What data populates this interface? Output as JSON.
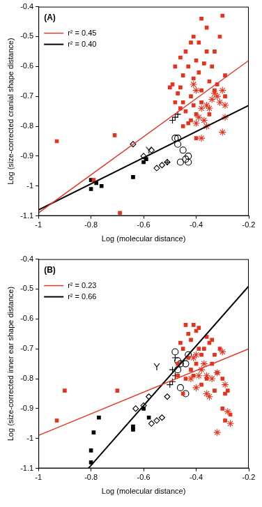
{
  "chart_data": [
    {
      "type": "scatter",
      "title": "(A)",
      "xlabel": "Log (molecular distance)",
      "ylabel": "Log (size-corrected cranial shape distance)",
      "xlim": [
        -1,
        -0.2
      ],
      "xticks": [
        -1,
        -0.8,
        -0.6,
        -0.4,
        -0.2
      ],
      "ylim": [
        -1.1,
        -0.4
      ],
      "yticks": [
        -1.1,
        -1,
        -0.9,
        -0.8,
        -0.7,
        -0.6,
        -0.5,
        -0.4
      ],
      "grid": false,
      "legend": "upper left",
      "series": [
        {
          "color": "#e8311d",
          "marker": "square",
          "x": [
            -0.93,
            -0.79,
            -0.71,
            -0.69,
            -0.49,
            -0.48,
            -0.46,
            -0.45,
            -0.45,
            -0.44,
            -0.43,
            -0.42,
            -0.42,
            -0.41,
            -0.41,
            -0.4,
            -0.39,
            -0.38,
            -0.37,
            -0.36,
            -0.35,
            -0.34,
            -0.33,
            -0.32,
            -0.31,
            -0.3,
            -0.29,
            -0.29,
            -0.47,
            -0.44,
            -0.43,
            -0.41,
            -0.4,
            -0.38,
            -0.46,
            -0.39,
            -0.36,
            -0.42,
            -0.45,
            -0.46,
            -0.33,
            -0.38,
            -0.4,
            -0.35,
            -0.48,
            -0.5
          ],
          "values": [
            -0.85,
            -0.98,
            -0.83,
            -1.09,
            -0.66,
            -0.6,
            -0.67,
            -0.63,
            -0.72,
            -0.55,
            -0.6,
            -0.7,
            -0.78,
            -0.64,
            -0.5,
            -0.58,
            -0.62,
            -0.44,
            -0.59,
            -0.55,
            -0.65,
            -0.6,
            -0.68,
            -0.66,
            -0.5,
            -0.43,
            -0.7,
            -0.63,
            -0.69,
            -0.75,
            -0.79,
            -0.73,
            -0.76,
            -0.72,
            -0.57,
            -0.52,
            -0.47,
            -0.52,
            -0.8,
            -0.74,
            -0.55,
            -0.68,
            -0.84,
            -0.76,
            -0.72,
            -0.67
          ]
        },
        {
          "color": "#e8311d",
          "marker": "asterisk",
          "x": [
            -0.41,
            -0.4,
            -0.38,
            -0.37,
            -0.36,
            -0.36,
            -0.34,
            -0.33,
            -0.32,
            -0.31,
            -0.3,
            -0.29,
            -0.29,
            -0.3,
            -0.38,
            -0.4,
            -0.39,
            -0.35
          ],
          "values": [
            -0.66,
            -0.68,
            -0.74,
            -0.78,
            -0.8,
            -0.73,
            -0.71,
            -0.69,
            -0.7,
            -0.72,
            -0.68,
            -0.73,
            -0.77,
            -0.82,
            -0.84,
            -0.79,
            -0.77,
            -0.74
          ]
        },
        {
          "color": "#000000",
          "marker": "square",
          "x": [
            -0.8,
            -0.8,
            -0.78,
            -0.76,
            -0.64,
            -0.6,
            -0.59
          ],
          "values": [
            -0.98,
            -1.01,
            -0.99,
            -1.0,
            -0.97,
            -0.92,
            -0.91
          ]
        },
        {
          "color": "#000000",
          "marker": "diamond_open",
          "x": [
            -0.64,
            -0.6,
            -0.57,
            -0.55,
            -0.53,
            -0.51
          ],
          "values": [
            -0.86,
            -0.9,
            -0.88,
            -0.94,
            -0.93,
            -0.92
          ]
        },
        {
          "color": "#000000",
          "marker": "Y",
          "x": [
            -0.58
          ],
          "values": [
            -0.88
          ]
        },
        {
          "color": "#000000",
          "marker": "plus",
          "x": [
            -0.49,
            -0.48,
            -0.47,
            -0.51
          ],
          "values": [
            -0.78,
            -0.77,
            -0.76,
            -0.92
          ]
        },
        {
          "color": "#000000",
          "marker": "circle_open",
          "x": [
            -0.48,
            -0.47,
            -0.47,
            -0.45,
            -0.44,
            -0.43,
            -0.46,
            -0.43
          ],
          "values": [
            -0.84,
            -0.84,
            -0.86,
            -0.88,
            -0.91,
            -0.9,
            -0.92,
            -0.92
          ]
        },
        {
          "name": "r² = 0.45",
          "type": "line",
          "line_style": "solid",
          "color": "#e8311d",
          "x": [
            -1,
            -0.2
          ],
          "values": [
            -1.09,
            -0.58
          ]
        },
        {
          "name": "r² = 0.40",
          "type": "line",
          "line_style": "solid",
          "color": "#000000",
          "x": [
            -1,
            -0.2
          ],
          "values": [
            -1.08,
            -0.73
          ]
        }
      ]
    },
    {
      "type": "scatter",
      "title": "(B)",
      "xlabel": "Log (molecular distance)",
      "ylabel": "Log (size-corrected inner ear shape distance)",
      "xlim": [
        -1,
        -0.2
      ],
      "xticks": [
        -1,
        -0.8,
        -0.6,
        -0.4,
        -0.2
      ],
      "ylim": [
        -1.1,
        -0.4
      ],
      "yticks": [
        -1.1,
        -1,
        -0.9,
        -0.8,
        -0.7,
        -0.6,
        -0.5,
        -0.4
      ],
      "grid": false,
      "legend": "upper left",
      "series": [
        {
          "color": "#e8311d",
          "marker": "square",
          "x": [
            -0.93,
            -0.9,
            -0.7,
            -0.47,
            -0.46,
            -0.45,
            -0.44,
            -0.43,
            -0.42,
            -0.41,
            -0.4,
            -0.39,
            -0.38,
            -0.37,
            -0.36,
            -0.35,
            -0.34,
            -0.33,
            -0.31,
            -0.3,
            -0.29,
            -0.28,
            -0.29,
            -0.27,
            -0.3,
            -0.44,
            -0.42,
            -0.4,
            -0.38,
            -0.36,
            -0.47,
            -0.45,
            -0.43,
            -0.41,
            -0.34,
            -0.33,
            -0.39,
            -0.32
          ],
          "values": [
            -0.94,
            -0.84,
            -0.84,
            -0.79,
            -0.68,
            -0.7,
            -0.62,
            -0.65,
            -0.67,
            -0.62,
            -0.64,
            -0.63,
            -0.72,
            -0.7,
            -0.66,
            -0.68,
            -0.67,
            -0.72,
            -0.7,
            -0.8,
            -0.85,
            -0.84,
            -0.94,
            -0.92,
            -0.9,
            -0.8,
            -0.77,
            -0.75,
            -0.82,
            -0.8,
            -0.75,
            -0.85,
            -0.73,
            -0.79,
            -0.75,
            -0.84,
            -0.7,
            -0.78
          ]
        },
        {
          "color": "#e8311d",
          "marker": "asterisk",
          "x": [
            -0.42,
            -0.41,
            -0.4,
            -0.39,
            -0.38,
            -0.37,
            -0.36,
            -0.35,
            -0.34,
            -0.32,
            -0.3,
            -0.29,
            -0.28,
            -0.27,
            -0.32,
            -0.4,
            -0.36
          ],
          "values": [
            -0.8,
            -0.73,
            -0.72,
            -0.79,
            -0.77,
            -0.75,
            -0.85,
            -0.86,
            -0.8,
            -0.78,
            -0.71,
            -0.82,
            -0.91,
            -0.95,
            -0.98,
            -0.83,
            -0.79
          ]
        },
        {
          "color": "#000000",
          "marker": "square",
          "x": [
            -0.8,
            -0.8,
            -0.79,
            -0.77,
            -0.64,
            -0.64,
            -0.6,
            -0.58
          ],
          "values": [
            -1.04,
            -1.08,
            -0.98,
            -0.93,
            -0.97,
            -0.96,
            -0.9,
            -0.93
          ]
        },
        {
          "color": "#000000",
          "marker": "diamond_open",
          "x": [
            -0.63,
            -0.6,
            -0.57,
            -0.55,
            -0.53,
            -0.51,
            -0.58
          ],
          "values": [
            -0.9,
            -0.89,
            -0.95,
            -0.94,
            -0.93,
            -0.86,
            -0.86
          ]
        },
        {
          "color": "#000000",
          "marker": "Y",
          "x": [
            -0.55
          ],
          "values": [
            -0.76
          ]
        },
        {
          "color": "#000000",
          "marker": "plus",
          "x": [
            -0.49,
            -0.48,
            -0.49,
            -0.48,
            -0.5
          ],
          "values": [
            -0.77,
            -0.79,
            -0.81,
            -0.73,
            -0.82
          ]
        },
        {
          "color": "#000000",
          "marker": "circle_open",
          "x": [
            -0.48,
            -0.47,
            -0.46,
            -0.44,
            -0.43,
            -0.44,
            -0.47,
            -0.46
          ],
          "values": [
            -0.71,
            -0.74,
            -0.75,
            -0.75,
            -0.72,
            -0.85,
            -0.77,
            -0.83
          ]
        },
        {
          "name": "r² = 0.23",
          "type": "line",
          "line_style": "solid",
          "color": "#e8311d",
          "x": [
            -1,
            -0.2
          ],
          "values": [
            -0.99,
            -0.7
          ]
        },
        {
          "name": "r² = 0.66",
          "type": "line",
          "line_style": "solid",
          "color": "#000000",
          "x": [
            -0.81,
            -0.2
          ],
          "values": [
            -1.1,
            -0.49
          ]
        }
      ]
    }
  ]
}
